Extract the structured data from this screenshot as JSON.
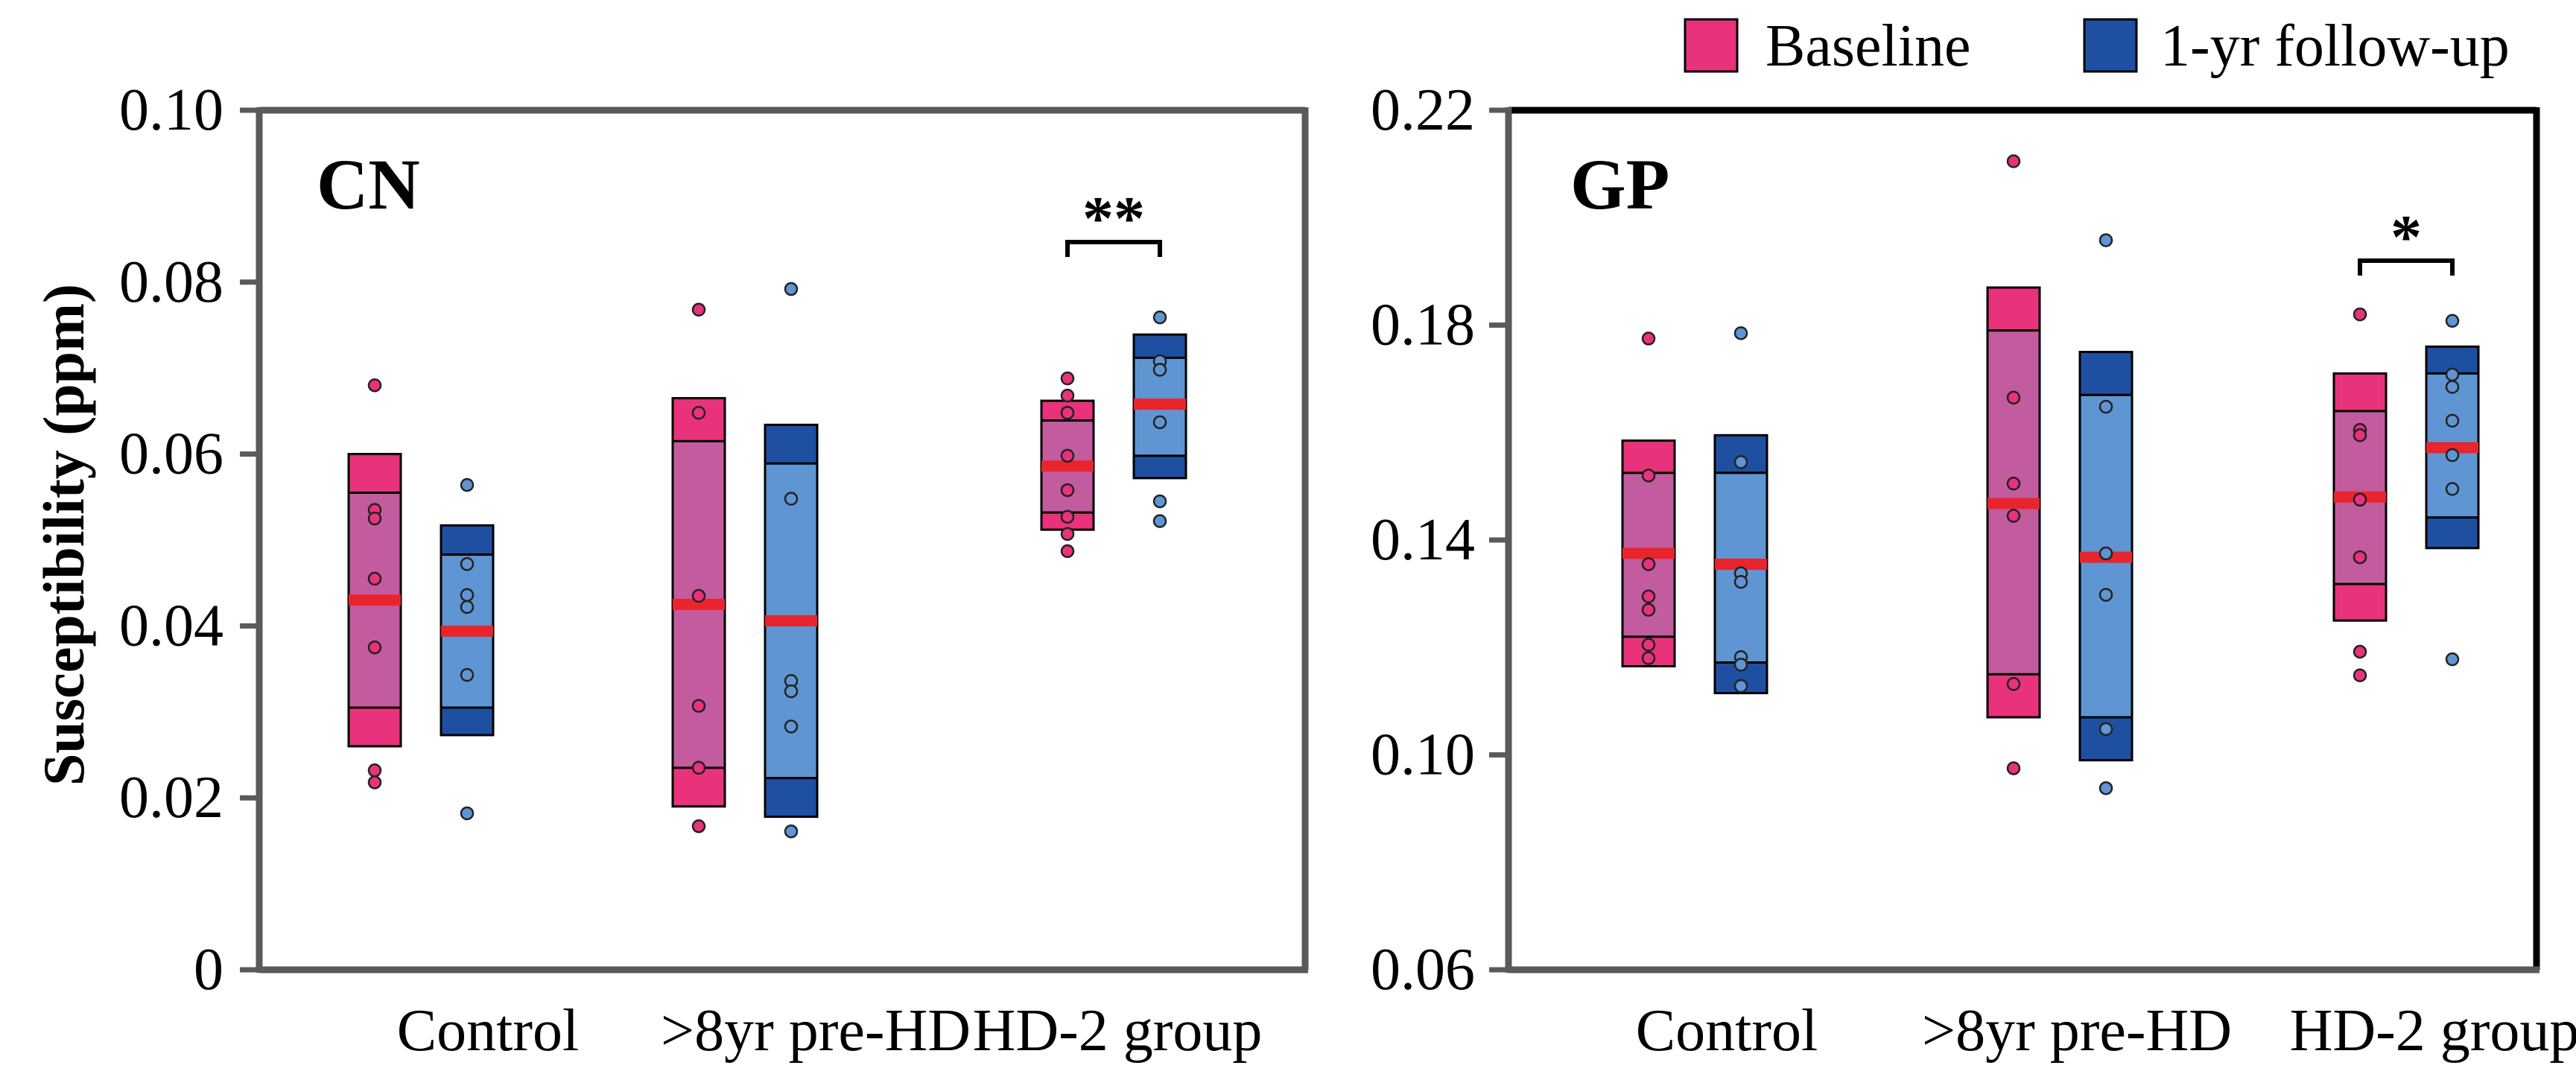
{
  "legend": [
    {
      "label": "Baseline",
      "color": "#e8327c"
    },
    {
      "label": "1-yr follow-up",
      "color": "#1f4fa0"
    }
  ],
  "colors": {
    "baseline_outer": "#e8327c",
    "baseline_inner": "#c35b9f",
    "followup_outer": "#1f4fa0",
    "followup_inner": "#5f95d2",
    "mean_line": "#e8242c",
    "axis": "#5a5a5a",
    "axis_right": "#000000"
  },
  "chart_data": [
    {
      "type": "box",
      "panel_label": "CN",
      "ylabel": "Susceptibility (ppm)",
      "ylim": [
        0,
        0.1
      ],
      "yticks": [
        "0",
        "0.02",
        "0.04",
        "0.06",
        "0.08",
        "0.10"
      ],
      "categories": [
        "Control",
        ">8yr pre-HD",
        "HD-2 group"
      ],
      "series": [
        {
          "name": "Baseline",
          "boxes": [
            {
              "outer": [
                0.026,
                0.06
              ],
              "inner": [
                0.0305,
                0.0555
              ],
              "mean": 0.043,
              "points": [
                0.068,
                0.0535,
                0.0525,
                0.0455,
                0.0375,
                0.0232,
                0.0218
              ]
            },
            {
              "outer": [
                0.019,
                0.0665
              ],
              "inner": [
                0.0235,
                0.0615
              ],
              "mean": 0.0425,
              "points": [
                0.0768,
                0.0648,
                0.0435,
                0.0307,
                0.0235,
                0.0167
              ]
            },
            {
              "outer": [
                0.0512,
                0.0662
              ],
              "inner": [
                0.0532,
                0.0639
              ],
              "mean": 0.0586,
              "points": [
                0.0688,
                0.0668,
                0.0648,
                0.0598,
                0.0558,
                0.0527,
                0.0507,
                0.0487
              ]
            }
          ]
        },
        {
          "name": "1-yr follow-up",
          "boxes": [
            {
              "outer": [
                0.0273,
                0.0517
              ],
              "inner": [
                0.0305,
                0.0483
              ],
              "mean": 0.0394,
              "points": [
                0.0564,
                0.0472,
                0.0436,
                0.0422,
                0.0343,
                0.0182
              ]
            },
            {
              "outer": [
                0.0178,
                0.0634
              ],
              "inner": [
                0.0223,
                0.0589
              ],
              "mean": 0.0406,
              "points": [
                0.0792,
                0.0548,
                0.0336,
                0.0324,
                0.0283,
                0.0161
              ]
            },
            {
              "outer": [
                0.0572,
                0.0739
              ],
              "inner": [
                0.0598,
                0.0712
              ],
              "mean": 0.0658,
              "points": [
                0.0759,
                0.0708,
                0.0698,
                0.0637,
                0.0545,
                0.0522
              ]
            }
          ]
        }
      ],
      "annotations": [
        {
          "text": "**",
          "category": "HD-2 group"
        }
      ]
    },
    {
      "type": "box",
      "panel_label": "GP",
      "ylim": [
        0.06,
        0.22
      ],
      "yticks": [
        "0.06",
        "0.10",
        "0.14",
        "0.18",
        "0.22"
      ],
      "categories": [
        "Control",
        ">8yr pre-HD",
        "HD-2 group"
      ],
      "series": [
        {
          "name": "Baseline",
          "boxes": [
            {
              "outer": [
                0.1165,
                0.1585
              ],
              "inner": [
                0.122,
                0.1525
              ],
              "mean": 0.1375,
              "points": [
                0.1775,
                0.152,
                0.1355,
                0.1295,
                0.127,
                0.1205,
                0.118
              ]
            },
            {
              "outer": [
                0.107,
                0.187
              ],
              "inner": [
                0.115,
                0.179
              ],
              "mean": 0.1468,
              "points": [
                0.2105,
                0.1665,
                0.1505,
                0.1445,
                0.1132,
                0.0975
              ]
            },
            {
              "outer": [
                0.125,
                0.171
              ],
              "inner": [
                0.1318,
                0.164
              ],
              "mean": 0.148,
              "points": [
                0.182,
                0.1605,
                0.1595,
                0.1475,
                0.1368,
                0.1192,
                0.1148
              ]
            }
          ]
        },
        {
          "name": "1-yr follow-up",
          "boxes": [
            {
              "outer": [
                0.1115,
                0.1595
              ],
              "inner": [
                0.1172,
                0.1525
              ],
              "mean": 0.1355,
              "points": [
                0.1785,
                0.1545,
                0.1338,
                0.1322,
                0.1182,
                0.1168,
                0.1128
              ]
            },
            {
              "outer": [
                0.099,
                0.175
              ],
              "inner": [
                0.107,
                0.167
              ],
              "mean": 0.1368,
              "points": [
                0.1958,
                0.1648,
                0.1375,
                0.1298,
                0.1048,
                0.0938
              ]
            },
            {
              "outer": [
                0.1385,
                0.176
              ],
              "inner": [
                0.1442,
                0.171
              ],
              "mean": 0.1572,
              "points": [
                0.1808,
                0.1708,
                0.1685,
                0.1622,
                0.1558,
                0.1495,
                0.1178
              ]
            }
          ]
        }
      ],
      "annotations": [
        {
          "text": "*",
          "category": "HD-2 group"
        }
      ]
    }
  ]
}
